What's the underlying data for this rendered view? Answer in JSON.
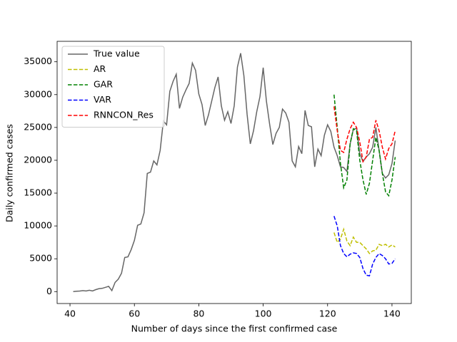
{
  "chart_data": {
    "type": "line",
    "xlabel": "Number of days since the first confirmed case",
    "ylabel": "Daily confirmed cases",
    "xlim": [
      36,
      146
    ],
    "xticks": [
      40,
      60,
      80,
      100,
      120,
      140
    ],
    "ylim": [
      -1815,
      38115
    ],
    "yticks": [
      0,
      5000,
      10000,
      15000,
      20000,
      25000,
      30000,
      35000
    ],
    "legend": "upper left",
    "series": [
      {
        "name": "True value",
        "color": "#666666",
        "linestyle": "solid",
        "x": [
          41,
          42,
          43,
          44,
          45,
          46,
          47,
          48,
          49,
          50,
          51,
          52,
          53,
          54,
          55,
          56,
          57,
          58,
          59,
          60,
          61,
          62,
          63,
          64,
          65,
          66,
          67,
          68,
          69,
          70,
          71,
          72,
          73,
          74,
          75,
          76,
          77,
          78,
          79,
          80,
          81,
          82,
          83,
          84,
          85,
          86,
          87,
          88,
          89,
          90,
          91,
          92,
          93,
          94,
          95,
          96,
          97,
          98,
          99,
          100,
          101,
          102,
          103,
          104,
          105,
          106,
          107,
          108,
          109,
          110,
          111,
          112,
          113,
          114,
          115,
          116,
          117,
          118,
          119,
          120,
          121,
          122,
          123,
          124,
          125,
          126,
          127,
          128,
          129,
          130,
          131,
          132,
          133,
          134,
          135,
          136,
          137,
          138,
          139,
          140,
          141
        ],
        "values": [
          0,
          50,
          80,
          150,
          100,
          200,
          100,
          300,
          450,
          500,
          650,
          800,
          150,
          1400,
          1900,
          2800,
          5200,
          5300,
          6400,
          7800,
          10100,
          10300,
          12000,
          18000,
          18200,
          19900,
          19300,
          21500,
          26000,
          25400,
          30500,
          32000,
          33100,
          27900,
          29600,
          30700,
          31700,
          34800,
          33700,
          30100,
          28500,
          25300,
          26900,
          29000,
          31100,
          32700,
          28300,
          26100,
          27400,
          25600,
          28300,
          34200,
          36300,
          32900,
          27000,
          22500,
          24500,
          27400,
          29700,
          34100,
          29000,
          25500,
          22400,
          24100,
          25000,
          27800,
          27200,
          25800,
          19900,
          19000,
          22100,
          21000,
          27600,
          25300,
          25100,
          19000,
          21700,
          20700,
          23800,
          25400,
          24400,
          22000,
          20700,
          19000,
          18900,
          18300,
          22500,
          24700,
          24900,
          21000,
          19800,
          20500,
          21000,
          22000,
          25000,
          21500,
          18000,
          17300,
          17800,
          19500,
          23000
        ]
      },
      {
        "name": "AR",
        "color": "#bfbf00",
        "linestyle": "dashed",
        "x": [
          122,
          123,
          124,
          125,
          126,
          127,
          128,
          129,
          130,
          131,
          132,
          133,
          134,
          135,
          136,
          137,
          138,
          139,
          140,
          141
        ],
        "values": [
          9000,
          7500,
          8000,
          9500,
          7700,
          7000,
          8300,
          7500,
          7500,
          7000,
          6500,
          5800,
          6200,
          6300,
          7200,
          7000,
          7200,
          6800,
          7100,
          6800
        ]
      },
      {
        "name": "GAR",
        "color": "#008000",
        "linestyle": "dashed",
        "x": [
          122,
          123,
          124,
          125,
          126,
          127,
          128,
          129,
          130,
          131,
          132,
          133,
          134,
          135,
          136,
          137,
          138,
          139,
          140,
          141
        ],
        "values": [
          30000,
          25000,
          19500,
          15800,
          17000,
          22500,
          24800,
          24500,
          20000,
          17000,
          14800,
          16500,
          20000,
          23500,
          21500,
          18000,
          15200,
          14600,
          17000,
          20500
        ]
      },
      {
        "name": "VAR",
        "color": "#0000ff",
        "linestyle": "dashed",
        "x": [
          122,
          123,
          124,
          125,
          126,
          127,
          128,
          129,
          130,
          131,
          132,
          133,
          134,
          135,
          136,
          137,
          138,
          139,
          140,
          141
        ],
        "values": [
          11500,
          10000,
          7000,
          5800,
          5300,
          5700,
          5900,
          5800,
          5200,
          3500,
          2500,
          2400,
          4200,
          5200,
          5800,
          5500,
          5000,
          4200,
          4300,
          5000
        ]
      },
      {
        "name": "RNNCON_Res",
        "color": "#ff0000",
        "linestyle": "dashed",
        "x": [
          122,
          123,
          124,
          125,
          126,
          127,
          128,
          129,
          130,
          131,
          132,
          133,
          134,
          135,
          136,
          137,
          138,
          139,
          140,
          141
        ],
        "values": [
          28200,
          24500,
          21500,
          21200,
          23200,
          24800,
          25800,
          25000,
          22800,
          19800,
          20500,
          23200,
          23500,
          26100,
          24500,
          22000,
          20200,
          21800,
          22500,
          24500
        ]
      }
    ]
  }
}
